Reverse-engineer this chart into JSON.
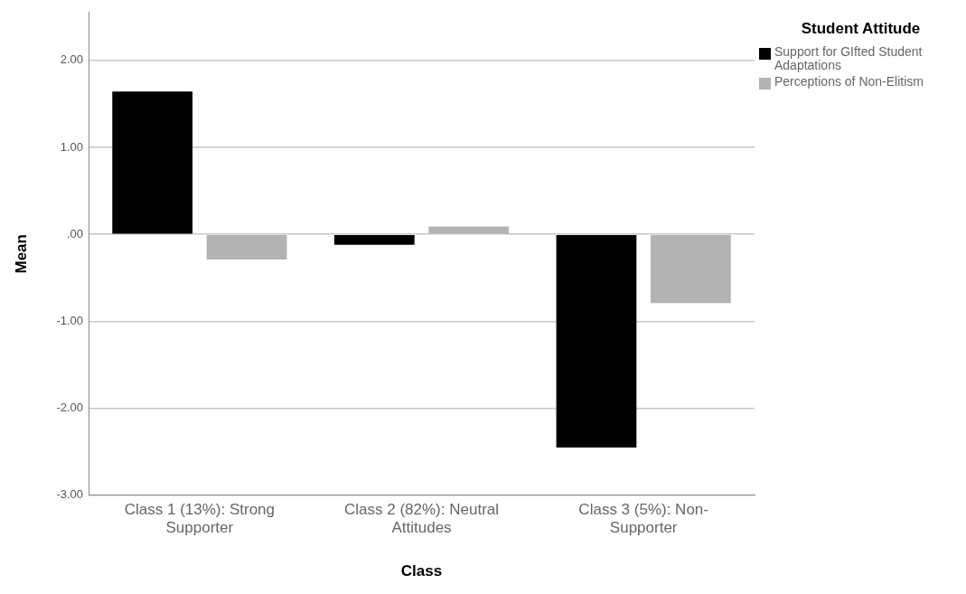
{
  "chart_data": {
    "type": "bar",
    "xlabel": "Class",
    "ylabel": "Mean",
    "legend_title": "Student Attitude",
    "categories": [
      "Class 1 (13%): Strong Supporter",
      "Class 2 (82%): Neutral Attitudes",
      "Class 3 (5%): Non-Supporter"
    ],
    "series": [
      {
        "name": "Support for GIfted Student Adaptations",
        "color": "#000000",
        "values": [
          1.64,
          -0.12,
          -2.45
        ]
      },
      {
        "name": "Perceptions of Non-Elitism",
        "color": "#b3b3b3",
        "values": [
          -0.29,
          0.09,
          -0.79
        ]
      }
    ],
    "ylim": [
      -3,
      2.55
    ],
    "yticks": [
      {
        "value": -3,
        "label": "-3.00"
      },
      {
        "value": -2,
        "label": "-2.00"
      },
      {
        "value": -1,
        "label": "-1.00"
      },
      {
        "value": 0,
        "label": ".00"
      },
      {
        "value": 1,
        "label": "1.00"
      },
      {
        "value": 2,
        "label": "2.00"
      }
    ],
    "grid": "y",
    "legend": "top right"
  }
}
